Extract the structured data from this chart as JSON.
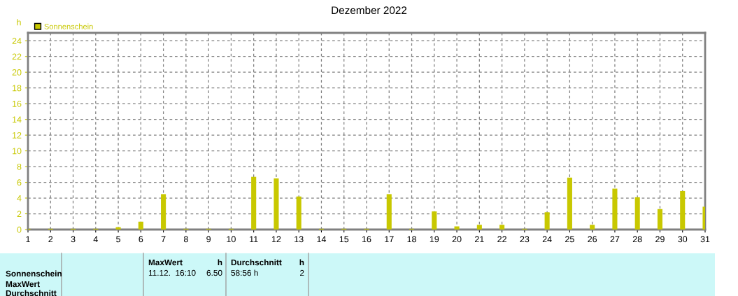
{
  "chart_data": {
    "type": "bar",
    "title": "Dezember 2022",
    "ylabel": "h",
    "x": [
      1,
      2,
      3,
      4,
      5,
      6,
      7,
      8,
      9,
      10,
      11,
      12,
      13,
      14,
      15,
      16,
      17,
      18,
      19,
      20,
      21,
      22,
      23,
      24,
      25,
      26,
      27,
      28,
      29,
      30,
      31
    ],
    "series": [
      {
        "name": "Sonnenschein",
        "color": "#c8c800",
        "values": [
          0.1,
          0.1,
          0.1,
          0.1,
          0.3,
          1.0,
          4.5,
          0.1,
          0.1,
          0.1,
          6.7,
          6.5,
          4.2,
          0.1,
          0.1,
          0.1,
          4.5,
          0.1,
          2.3,
          0.4,
          0.6,
          0.6,
          0.1,
          2.2,
          6.6,
          0.6,
          5.2,
          4.1,
          2.6,
          4.9,
          2.9
        ]
      }
    ],
    "xlim": [
      1,
      31
    ],
    "xticks": [
      1,
      2,
      3,
      4,
      5,
      6,
      7,
      8,
      9,
      10,
      11,
      12,
      13,
      14,
      15,
      16,
      17,
      18,
      19,
      20,
      21,
      22,
      23,
      24,
      25,
      26,
      27,
      28,
      29,
      30,
      31
    ],
    "ylim": [
      0,
      25
    ],
    "yticks": [
      0,
      2,
      4,
      6,
      8,
      10,
      12,
      14,
      16,
      18,
      20,
      22,
      24
    ],
    "grid": true,
    "legend": "top left",
    "annotations": [
      "Sonnenschein",
      "MaxWert",
      "Durchschnitt",
      "MaxWert",
      "h",
      "11.12.  16:10",
      "6.50",
      "Durchschnitt",
      "h",
      "58:56 h",
      "2"
    ]
  }
}
